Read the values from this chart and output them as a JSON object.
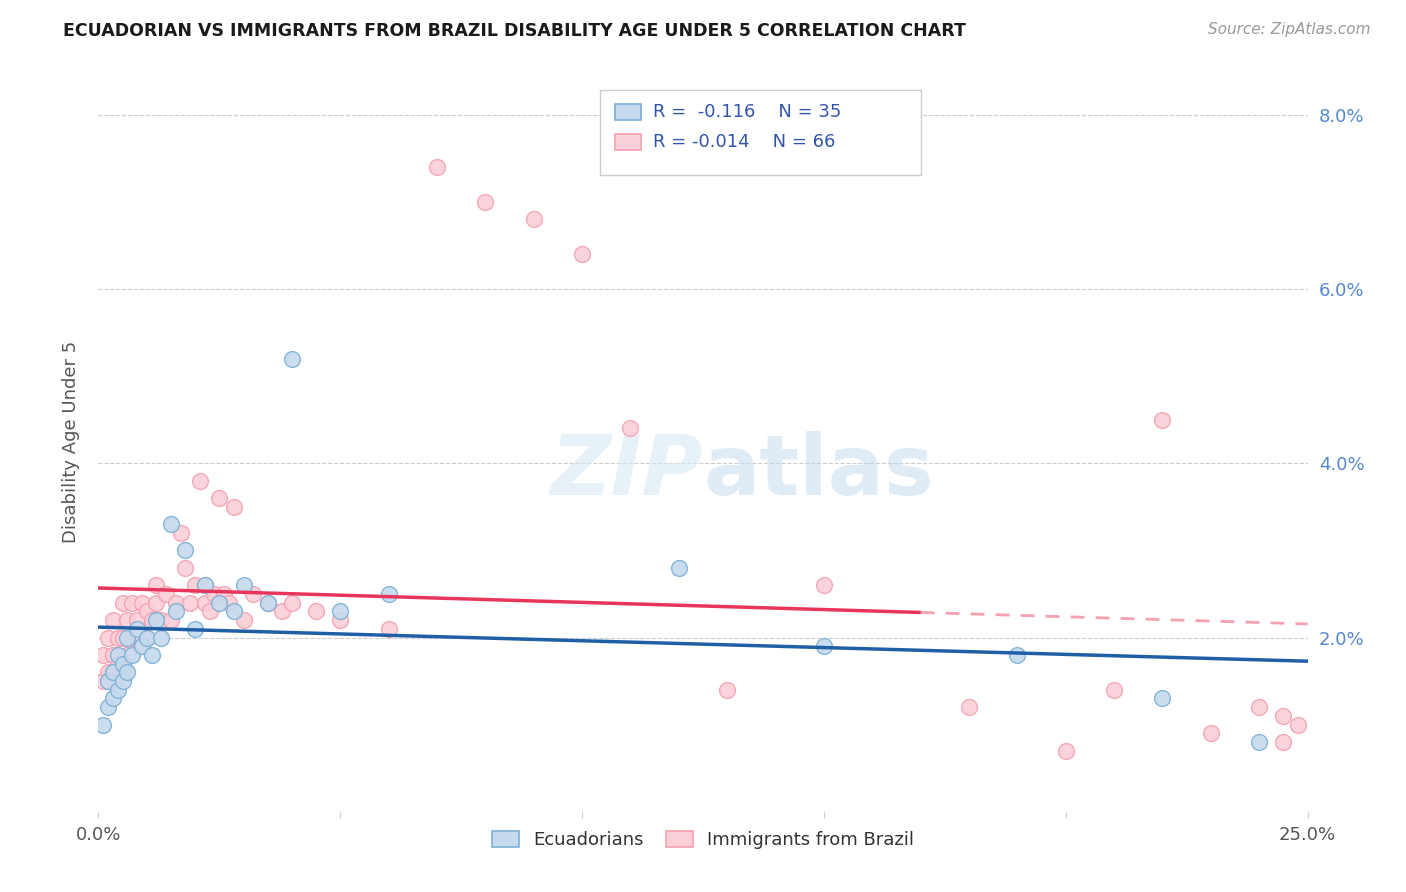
{
  "title": "ECUADORIAN VS IMMIGRANTS FROM BRAZIL DISABILITY AGE UNDER 5 CORRELATION CHART",
  "source": "Source: ZipAtlas.com",
  "ylabel": "Disability Age Under 5",
  "xlim": [
    0.0,
    0.25
  ],
  "ylim": [
    0.0,
    0.085
  ],
  "yticks": [
    0.0,
    0.02,
    0.04,
    0.06,
    0.08
  ],
  "ytick_labels": [
    "",
    "2.0%",
    "4.0%",
    "6.0%",
    "8.0%"
  ],
  "xticks": [
    0.0,
    0.05,
    0.1,
    0.15,
    0.2,
    0.25
  ],
  "xtick_labels": [
    "0.0%",
    "",
    "",
    "",
    "",
    "25.0%"
  ],
  "blue_edge": "#7BAFD4",
  "blue_fill": "#C5DAEE",
  "pink_edge": "#F4A0B0",
  "pink_fill": "#FBCFD8",
  "trend_blue": "#1F5FA6",
  "trend_pink": "#E8365A",
  "trend_pink_dash_color": "#F4A0B0",
  "legend_R_blue": "R =  -0.116",
  "legend_N_blue": "N = 35",
  "legend_R_pink": "R = -0.014",
  "legend_N_pink": "N = 66",
  "watermark": "ZIPatlas",
  "blue_scatter_x": [
    0.001,
    0.002,
    0.002,
    0.003,
    0.003,
    0.004,
    0.004,
    0.005,
    0.005,
    0.006,
    0.006,
    0.007,
    0.008,
    0.009,
    0.01,
    0.011,
    0.012,
    0.013,
    0.015,
    0.016,
    0.018,
    0.02,
    0.022,
    0.025,
    0.028,
    0.03,
    0.035,
    0.04,
    0.05,
    0.06,
    0.12,
    0.15,
    0.19,
    0.22,
    0.24
  ],
  "blue_scatter_y": [
    0.01,
    0.012,
    0.015,
    0.013,
    0.016,
    0.014,
    0.018,
    0.015,
    0.017,
    0.016,
    0.02,
    0.018,
    0.021,
    0.019,
    0.02,
    0.018,
    0.022,
    0.02,
    0.033,
    0.023,
    0.03,
    0.021,
    0.026,
    0.024,
    0.023,
    0.026,
    0.024,
    0.052,
    0.023,
    0.025,
    0.028,
    0.019,
    0.018,
    0.013,
    0.008
  ],
  "pink_scatter_x": [
    0.001,
    0.001,
    0.002,
    0.002,
    0.003,
    0.003,
    0.003,
    0.004,
    0.004,
    0.005,
    0.005,
    0.005,
    0.006,
    0.006,
    0.007,
    0.007,
    0.008,
    0.008,
    0.009,
    0.009,
    0.01,
    0.01,
    0.011,
    0.012,
    0.012,
    0.013,
    0.014,
    0.015,
    0.016,
    0.017,
    0.018,
    0.019,
    0.02,
    0.021,
    0.022,
    0.022,
    0.023,
    0.024,
    0.025,
    0.026,
    0.027,
    0.028,
    0.03,
    0.032,
    0.035,
    0.038,
    0.04,
    0.045,
    0.05,
    0.06,
    0.07,
    0.08,
    0.09,
    0.1,
    0.11,
    0.13,
    0.15,
    0.18,
    0.2,
    0.21,
    0.22,
    0.23,
    0.24,
    0.245,
    0.245,
    0.248
  ],
  "pink_scatter_y": [
    0.015,
    0.018,
    0.016,
    0.02,
    0.015,
    0.018,
    0.022,
    0.017,
    0.02,
    0.016,
    0.02,
    0.024,
    0.018,
    0.022,
    0.02,
    0.024,
    0.02,
    0.022,
    0.019,
    0.024,
    0.02,
    0.023,
    0.022,
    0.024,
    0.026,
    0.022,
    0.025,
    0.022,
    0.024,
    0.032,
    0.028,
    0.024,
    0.026,
    0.038,
    0.024,
    0.026,
    0.023,
    0.025,
    0.036,
    0.025,
    0.024,
    0.035,
    0.022,
    0.025,
    0.024,
    0.023,
    0.024,
    0.023,
    0.022,
    0.021,
    0.074,
    0.07,
    0.068,
    0.064,
    0.044,
    0.014,
    0.026,
    0.012,
    0.007,
    0.014,
    0.045,
    0.009,
    0.012,
    0.008,
    0.011,
    0.01
  ]
}
